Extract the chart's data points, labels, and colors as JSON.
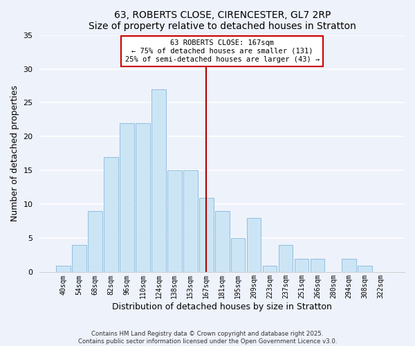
{
  "title": "63, ROBERTS CLOSE, CIRENCESTER, GL7 2RP",
  "subtitle": "Size of property relative to detached houses in Stratton",
  "xlabel": "Distribution of detached houses by size in Stratton",
  "ylabel": "Number of detached properties",
  "bar_labels": [
    "40sqm",
    "54sqm",
    "68sqm",
    "82sqm",
    "96sqm",
    "110sqm",
    "124sqm",
    "138sqm",
    "153sqm",
    "167sqm",
    "181sqm",
    "195sqm",
    "209sqm",
    "223sqm",
    "237sqm",
    "251sqm",
    "266sqm",
    "280sqm",
    "294sqm",
    "308sqm",
    "322sqm"
  ],
  "bar_values": [
    1,
    4,
    9,
    17,
    22,
    22,
    27,
    15,
    15,
    11,
    9,
    5,
    8,
    1,
    4,
    2,
    2,
    0,
    2,
    1,
    0
  ],
  "bar_color": "#cce5f5",
  "bar_edge_color": "#90bede",
  "marker_index": 9,
  "marker_line_color": "#aa0000",
  "annotation_line1": "63 ROBERTS CLOSE: 167sqm",
  "annotation_line2": "← 75% of detached houses are smaller (131)",
  "annotation_line3": "25% of semi-detached houses are larger (43) →",
  "annotation_box_edge": "#cc0000",
  "ylim": [
    0,
    35
  ],
  "yticks": [
    0,
    5,
    10,
    15,
    20,
    25,
    30,
    35
  ],
  "background_color": "#eef2fb",
  "grid_color": "#ffffff",
  "footer_line1": "Contains HM Land Registry data © Crown copyright and database right 2025.",
  "footer_line2": "Contains public sector information licensed under the Open Government Licence v3.0."
}
